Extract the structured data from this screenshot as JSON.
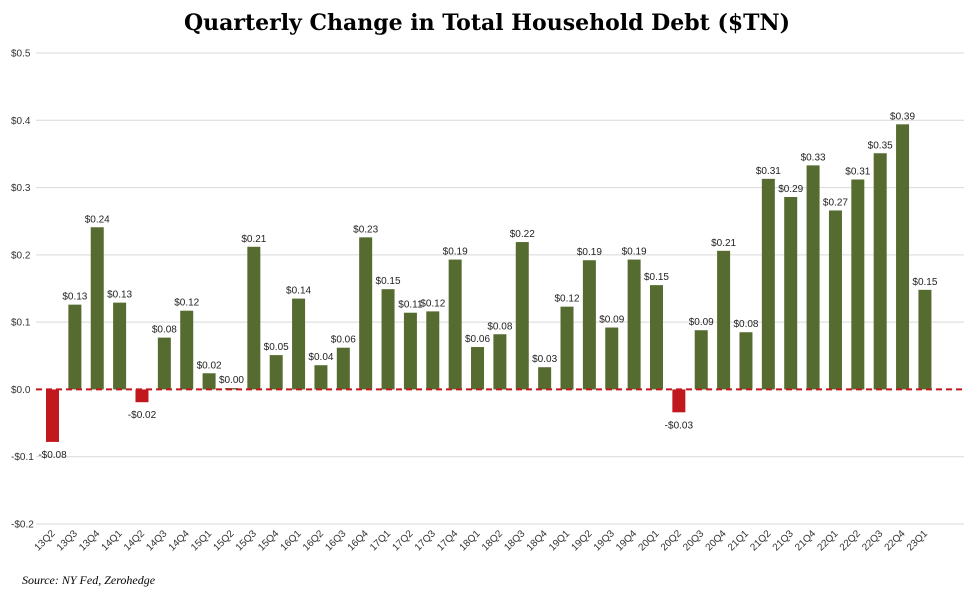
{
  "chart_data": {
    "type": "bar",
    "title": "Quarterly Change in Total Household Debt ($TN)",
    "source": "Source: NY Fed, Zerohedge",
    "xlabel": "",
    "ylabel": "",
    "ylim": [
      -0.2,
      0.5
    ],
    "yticks": [
      {
        "value": 0.5,
        "label": "$0.5"
      },
      {
        "value": 0.4,
        "label": "$0.4"
      },
      {
        "value": 0.3,
        "label": "$0.3"
      },
      {
        "value": 0.2,
        "label": "$0.2"
      },
      {
        "value": 0.1,
        "label": "$0.1"
      },
      {
        "value": 0.0,
        "label": "$0.0"
      },
      {
        "value": -0.1,
        "label": "-$0.1"
      },
      {
        "value": -0.2,
        "label": "-$0.2"
      }
    ],
    "grid": true,
    "zero_line": "red dashed",
    "categories": [
      "13Q2",
      "13Q3",
      "13Q4",
      "14Q1",
      "14Q2",
      "14Q3",
      "14Q4",
      "15Q1",
      "15Q2",
      "15Q3",
      "15Q4",
      "16Q1",
      "16Q2",
      "16Q3",
      "16Q4",
      "17Q1",
      "17Q2",
      "17Q3",
      "17Q4",
      "18Q1",
      "18Q2",
      "18Q3",
      "18Q4",
      "19Q1",
      "19Q2",
      "19Q3",
      "19Q4",
      "20Q1",
      "20Q2",
      "20Q3",
      "20Q4",
      "21Q1",
      "21Q2",
      "21Q3",
      "21Q4",
      "22Q1",
      "22Q2",
      "22Q3",
      "22Q4",
      "23Q1"
    ],
    "values": [
      -0.078,
      0.126,
      0.241,
      0.129,
      -0.019,
      0.077,
      0.117,
      0.024,
      0.002,
      0.212,
      0.051,
      0.135,
      0.036,
      0.062,
      0.226,
      0.149,
      0.114,
      0.116,
      0.193,
      0.063,
      0.082,
      0.219,
      0.033,
      0.123,
      0.192,
      0.092,
      0.193,
      0.155,
      -0.034,
      0.088,
      0.206,
      0.085,
      0.313,
      0.286,
      0.333,
      0.266,
      0.312,
      0.351,
      0.394,
      0.148
    ],
    "data_labels": [
      "-$0.08",
      "$0.13",
      "$0.24",
      "$0.13",
      "-$0.02",
      "$0.08",
      "$0.12",
      "$0.02",
      "$0.00",
      "$0.21",
      "$0.05",
      "$0.14",
      "$0.04",
      "$0.06",
      "$0.23",
      "$0.15",
      "$0.11",
      "$0.12",
      "$0.19",
      "$0.06",
      "$0.08",
      "$0.22",
      "$0.03",
      "$0.12",
      "$0.19",
      "$0.09",
      "$0.19",
      "$0.15",
      "-$0.03",
      "$0.09",
      "$0.21",
      "$0.08",
      "$0.31",
      "$0.29",
      "$0.33",
      "$0.27",
      "$0.31",
      "$0.35",
      "$0.39",
      "$0.15"
    ],
    "colors": {
      "positive": "#556b2f",
      "negative": "#c0181c",
      "zero_line": "#c0181c",
      "grid": "#d9d9d9"
    }
  }
}
